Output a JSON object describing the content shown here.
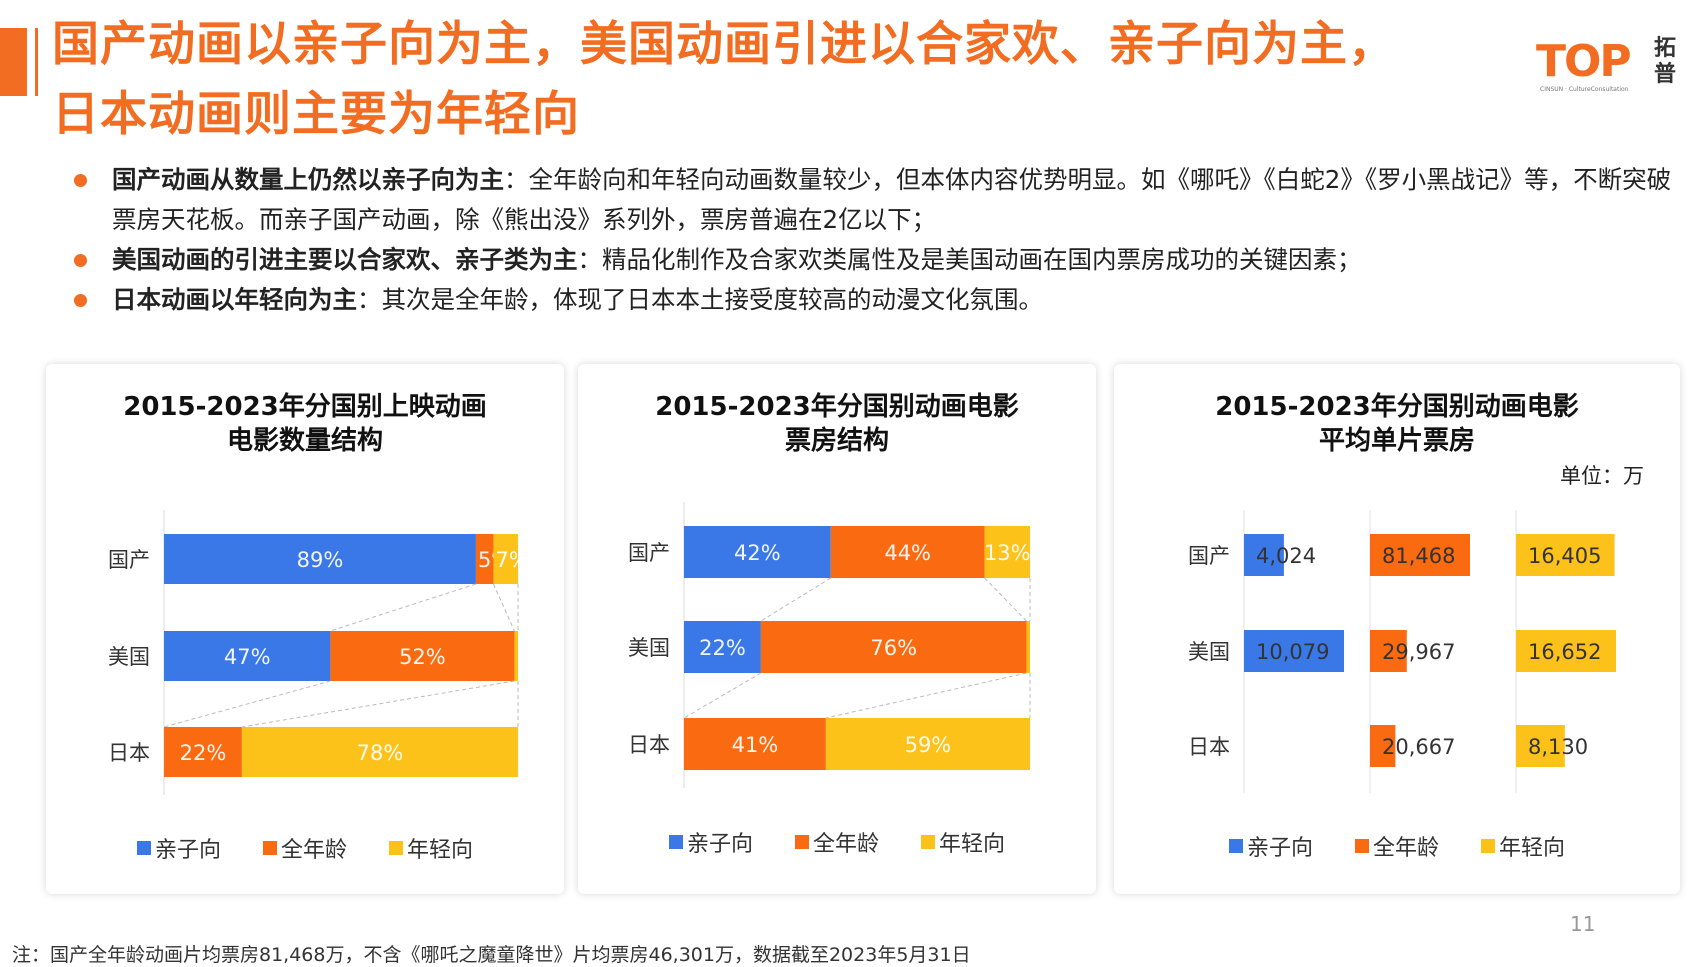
{
  "title": {
    "line1": "国产动画以亲子向为主，美国动画引进以合家欢、亲子向为主，",
    "line2": "日本动画则主要为年轻向"
  },
  "logo": {
    "text": "TOP",
    "cn": "拓普",
    "sub": "CINSUN · CultureConsultation"
  },
  "bullets": [
    {
      "bold": "国产动画从数量上仍然以亲子向为主",
      "text": "：全年龄向和年轻向动画数量较少，但本体内容优势明显。如《哪吒》《白蛇2》《罗小黑战记》等，不断突破票房天花板。而亲子国产动画，除《熊出没》系列外，票房普遍在2亿以下；"
    },
    {
      "bold": "美国动画的引进主要以合家欢、亲子类为主",
      "text": "：精品化制作及合家欢类属性及是美国动画在国内票房成功的关键因素；"
    },
    {
      "bold": "日本动画以年轻向为主",
      "text": "：其次是全年龄，体现了日本本土接受度较高的动漫文化氛围。"
    }
  ],
  "colors": {
    "parent": "#3b78e7",
    "all_ages": "#fa6a10",
    "youth": "#fcc21a",
    "accent": "#f26d21"
  },
  "chart_data": [
    {
      "type": "bar",
      "stacked": true,
      "orientation": "horizontal",
      "title_line1": "2015-2023年分国别上映动画",
      "title_line2": "电影数量结构",
      "categories": [
        "国产",
        "美国",
        "日本"
      ],
      "series": [
        {
          "name": "亲子向",
          "values": [
            89,
            47,
            0
          ],
          "labels": [
            "89%",
            "47%",
            ""
          ]
        },
        {
          "name": "全年龄",
          "values": [
            5,
            52,
            22
          ],
          "labels": [
            "5%",
            "52%",
            "22%"
          ]
        },
        {
          "name": "年轻向",
          "values": [
            7,
            1,
            78
          ],
          "labels": [
            "7%",
            "1%",
            "78%"
          ]
        }
      ],
      "legend": "bottom"
    },
    {
      "type": "bar",
      "stacked": true,
      "orientation": "horizontal",
      "title_line1": "2015-2023年分国别动画电影",
      "title_line2": "票房结构",
      "categories": [
        "国产",
        "美国",
        "日本"
      ],
      "series": [
        {
          "name": "亲子向",
          "values": [
            42,
            22,
            0
          ],
          "labels": [
            "42%",
            "22%",
            ""
          ]
        },
        {
          "name": "全年龄",
          "values": [
            44,
            76,
            41
          ],
          "labels": [
            "44%",
            "76%",
            "41%"
          ]
        },
        {
          "name": "年轻向",
          "values": [
            13,
            1,
            59
          ],
          "labels": [
            "13%",
            "",
            "59%"
          ]
        }
      ],
      "legend": "bottom"
    },
    {
      "type": "bar",
      "orientation": "horizontal",
      "panels": true,
      "title_line1": "2015-2023年分国别动画电影",
      "title_line2": "平均单片票房",
      "unit": "单位：万",
      "categories": [
        "国产",
        "美国",
        "日本"
      ],
      "series": [
        {
          "name": "亲子向",
          "values": [
            4024,
            10079,
            null
          ],
          "labels": [
            "4,024",
            "10,079",
            ""
          ]
        },
        {
          "name": "全年龄",
          "values": [
            81468,
            29967,
            20667
          ],
          "labels": [
            "81,468",
            "29,967",
            "20,667"
          ]
        },
        {
          "name": "年轻向",
          "values": [
            16405,
            16652,
            8130
          ],
          "labels": [
            "16,405",
            "16,652",
            "8,130"
          ]
        }
      ],
      "legend": "bottom"
    }
  ],
  "page_number": "11",
  "note": "注：国产全年龄动画片均票房81,468万，不含《哪吒之魔童降世》片均票房46,301万，数据截至2023年5月31日"
}
